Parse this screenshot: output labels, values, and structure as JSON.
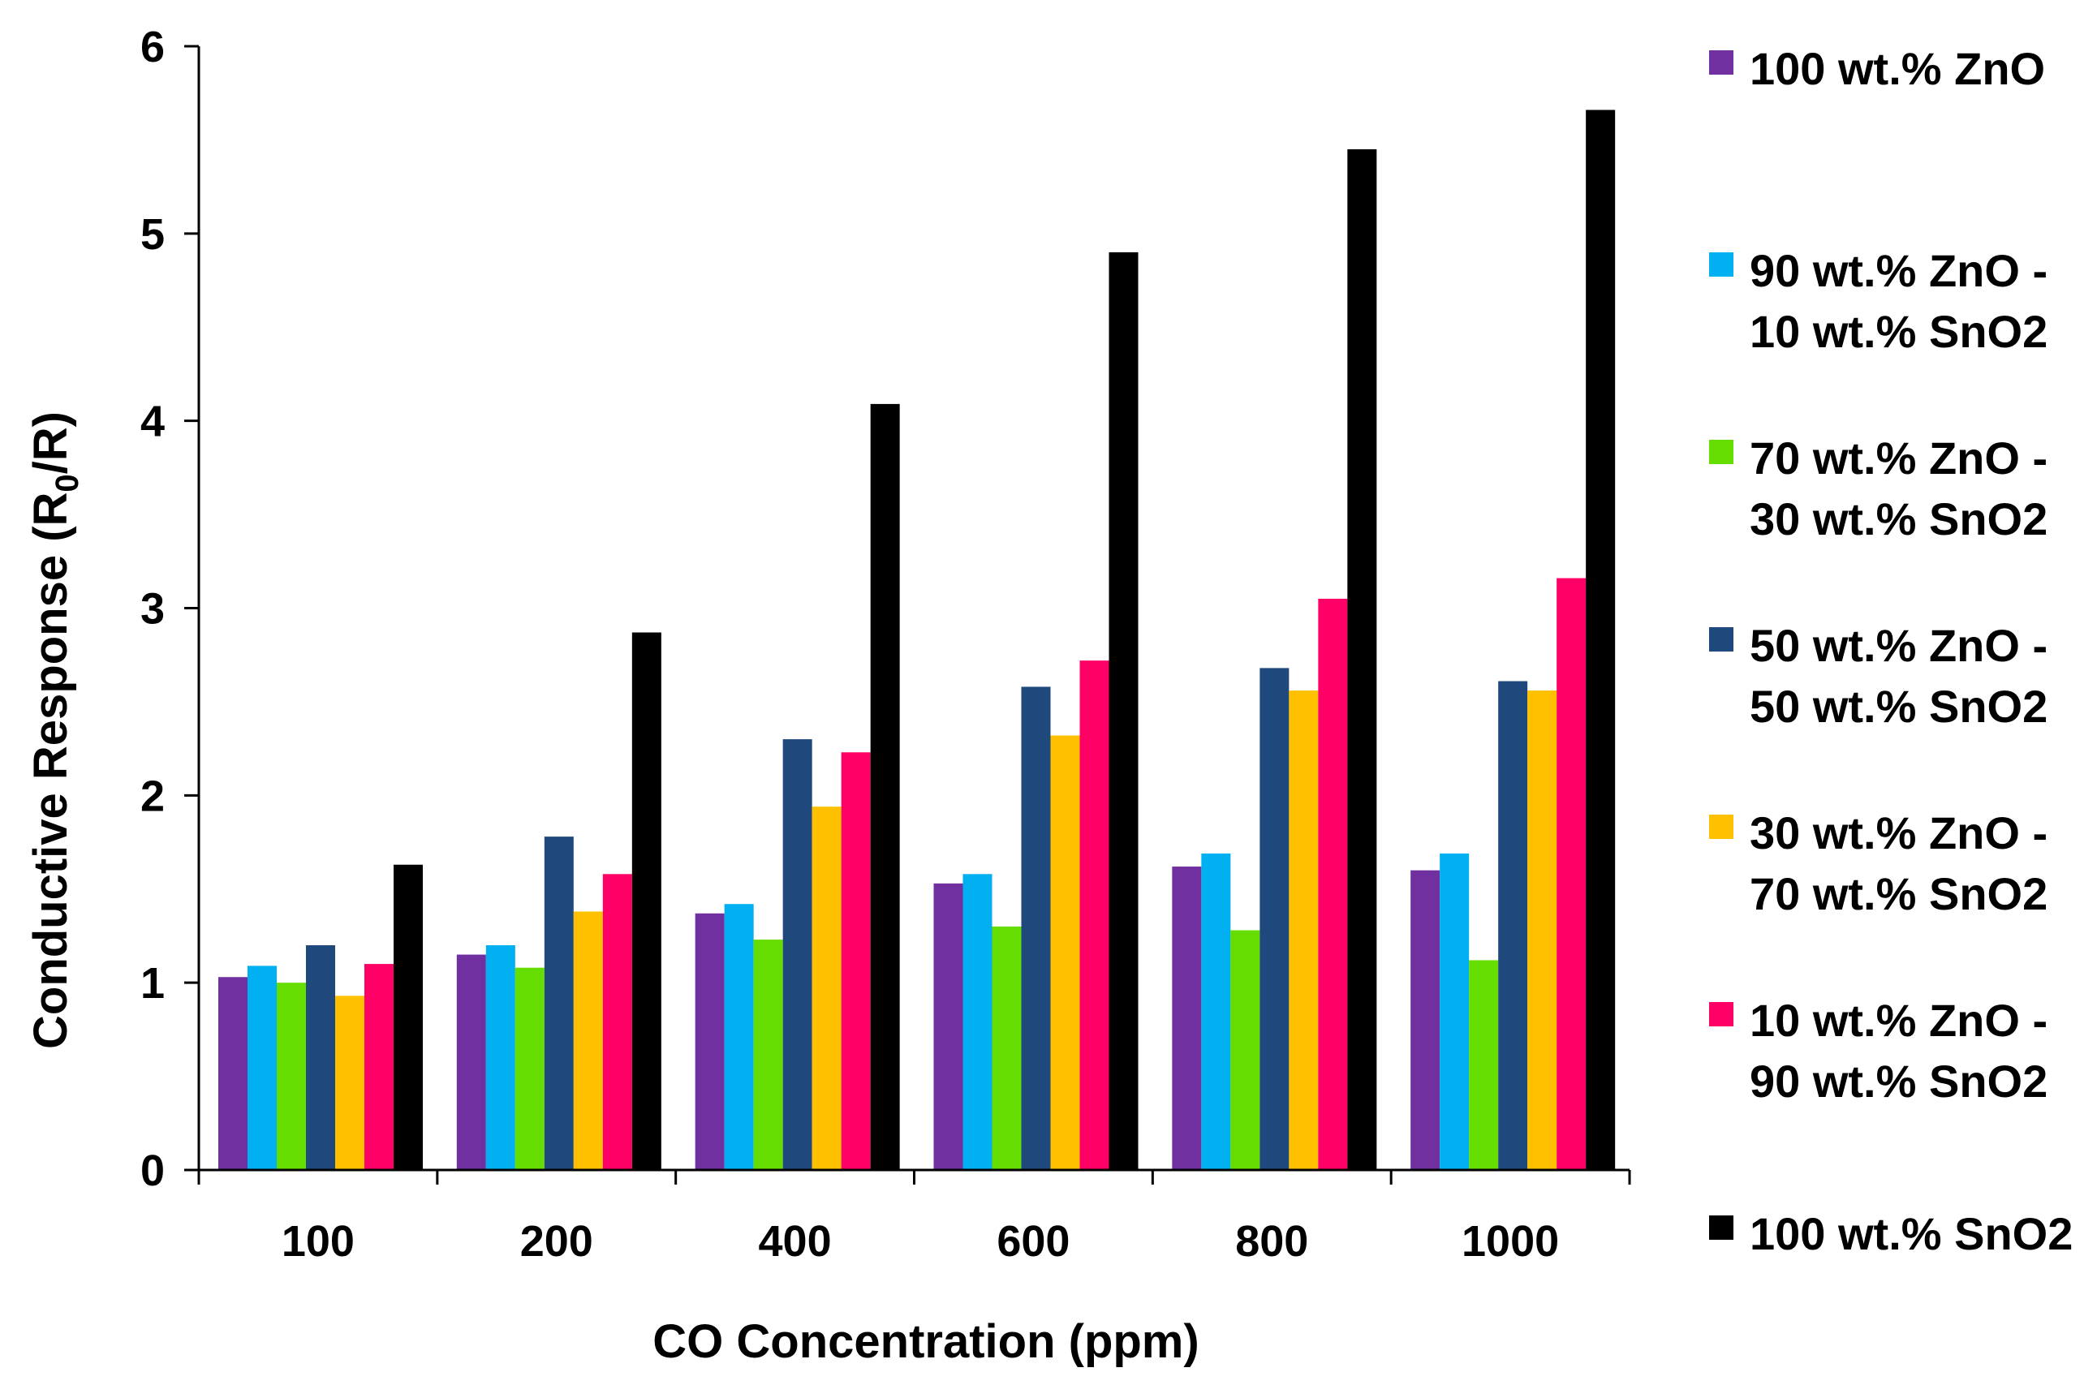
{
  "chart_data": {
    "type": "bar",
    "title": "",
    "xlabel": "CO Concentration (ppm)",
    "ylabel": "Conductive Response (R0/R)",
    "ylabel_parts": {
      "before": "Conductive Response (R",
      "subscript": "0",
      "after": "/R)"
    },
    "ylim": [
      0,
      6
    ],
    "yticks": [
      "0",
      "1",
      "2",
      "3",
      "4",
      "5",
      "6"
    ],
    "categories": [
      "100",
      "200",
      "400",
      "600",
      "800",
      "1000"
    ],
    "legend_position": "right",
    "series": [
      {
        "name": "100 wt.% ZnO",
        "label_lines": [
          "100 wt.% ZnO"
        ],
        "color": "#7030A0",
        "values": [
          1.03,
          1.15,
          1.37,
          1.53,
          1.62,
          1.6
        ]
      },
      {
        "name": "90 wt.% ZnO - 10 wt.% SnO2",
        "label_lines": [
          "90 wt.% ZnO -",
          "10 wt.% SnO2"
        ],
        "color": "#00B0F0",
        "values": [
          1.09,
          1.2,
          1.42,
          1.58,
          1.69,
          1.69
        ]
      },
      {
        "name": "70 wt.% ZnO - 30 wt.% SnO2",
        "label_lines": [
          "70 wt.% ZnO -",
          "30 wt.% SnO2"
        ],
        "color": "#66DD00",
        "values": [
          1.0,
          1.08,
          1.23,
          1.3,
          1.28,
          1.12
        ]
      },
      {
        "name": "50 wt.% ZnO - 50 wt.% SnO2",
        "label_lines": [
          "50 wt.% ZnO -",
          "50 wt.% SnO2"
        ],
        "color": "#1F497D",
        "values": [
          1.2,
          1.78,
          2.3,
          2.58,
          2.68,
          2.61
        ]
      },
      {
        "name": "30 wt.% ZnO - 70 wt.% SnO2",
        "label_lines": [
          "30 wt.% ZnO -",
          "70 wt.% SnO2"
        ],
        "color": "#FFC000",
        "values": [
          0.93,
          1.38,
          1.94,
          2.32,
          2.56,
          2.56
        ]
      },
      {
        "name": "10 wt.% ZnO - 90 wt.% SnO2",
        "label_lines": [
          "10 wt.% ZnO -",
          "90 wt.% SnO2"
        ],
        "color": "#FF0066",
        "values": [
          1.1,
          1.58,
          2.23,
          2.72,
          3.05,
          3.16
        ]
      },
      {
        "name": "100 wt.% SnO2",
        "label_lines": [
          "100 wt.% SnO2"
        ],
        "color": "#000000",
        "values": [
          1.63,
          2.87,
          4.09,
          4.9,
          5.45,
          5.66
        ]
      }
    ]
  }
}
